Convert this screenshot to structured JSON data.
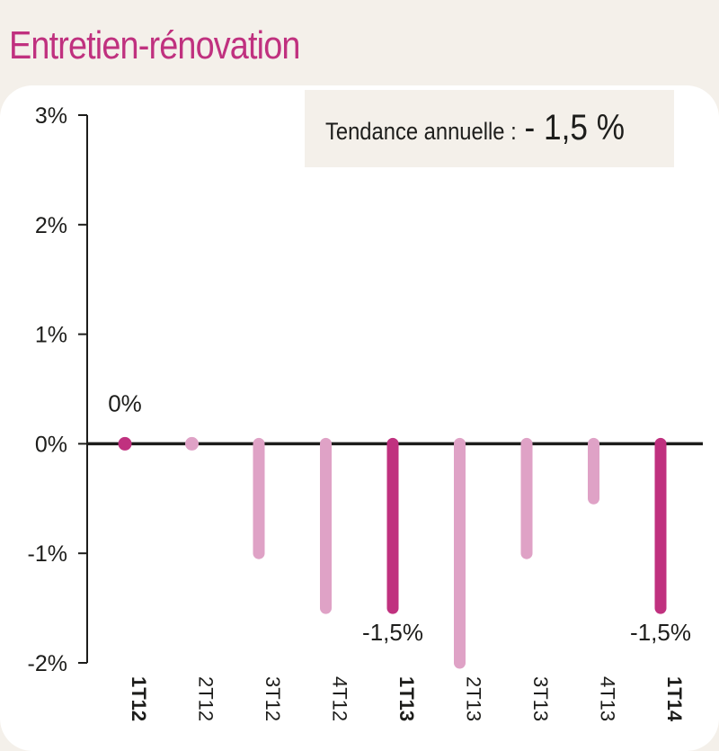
{
  "title": "Entretien-rénovation",
  "trend": {
    "label": "Tendance annuelle :",
    "value": "- 1,5 %"
  },
  "colors": {
    "title": "#c0317f",
    "bar_highlight": "#c0317f",
    "bar_light": "#dfa2c6",
    "axis": "#1d1d1b",
    "text": "#1d1d1b",
    "background": "#f4f0ea",
    "panel": "#ffffff"
  },
  "chart_data": {
    "type": "bar",
    "title": "Entretien-rénovation",
    "xlabel": "",
    "ylabel": "",
    "categories": [
      "1T12",
      "2T12",
      "3T12",
      "4T12",
      "1T13",
      "2T13",
      "3T13",
      "4T13",
      "1T14"
    ],
    "values": [
      0,
      0,
      -1,
      -1.5,
      -1.5,
      -2,
      -1,
      -0.5,
      -1.5
    ],
    "highlighted": [
      true,
      false,
      false,
      false,
      true,
      false,
      false,
      false,
      true
    ],
    "ylim": [
      -2,
      3
    ],
    "yticks": [
      3,
      2,
      1,
      0,
      -1,
      -2
    ],
    "ytick_labels": [
      "3%",
      "2%",
      "1%",
      "0%",
      "-1%",
      "-2%"
    ],
    "data_labels": [
      {
        "category": "1T12",
        "text": "0%"
      },
      {
        "category": "1T13",
        "text": "-1,5%"
      },
      {
        "category": "1T14",
        "text": "-1,5%"
      }
    ],
    "grid": false
  }
}
